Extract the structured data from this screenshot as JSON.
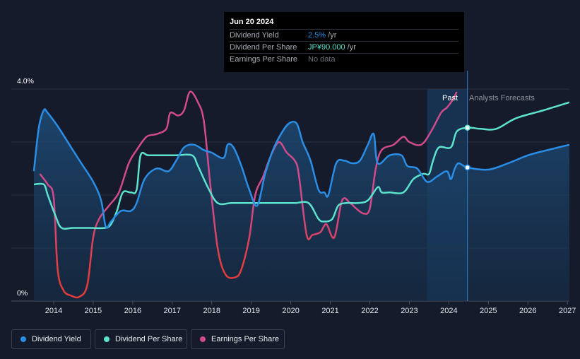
{
  "tooltip": {
    "date": "Jun 20 2024",
    "rows": [
      {
        "label": "Dividend Yield",
        "value": "2.5%",
        "unit": " /yr",
        "color": "#2a8ee6"
      },
      {
        "label": "Dividend Per Share",
        "value": "JP¥90.000",
        "unit": " /yr",
        "color": "#5de3cd"
      },
      {
        "label": "Earnings Per Share",
        "value": "No data",
        "unit": "",
        "color": "#6c717a"
      }
    ]
  },
  "legend": [
    {
      "label": "Dividend Yield",
      "color": "#2a8ee6"
    },
    {
      "label": "Dividend Per Share",
      "color": "#5de3cd"
    },
    {
      "label": "Earnings Per Share",
      "color": "#d14a89"
    }
  ],
  "chart_data": {
    "type": "line",
    "ylabel_top": "4.0%",
    "ylabel_bottom": "0%",
    "ylim": [
      0,
      4.0
    ],
    "xlim": [
      2013.5,
      2027.05
    ],
    "x_ticks": [
      "2014",
      "2015",
      "2016",
      "2017",
      "2018",
      "2019",
      "2020",
      "2021",
      "2022",
      "2023",
      "2024",
      "2025",
      "2026",
      "2027"
    ],
    "past_label": "Past",
    "forecast_label": "Analysts Forecasts",
    "forecast_start": 2024.47,
    "past_band_start": 2023.45,
    "series": [
      {
        "name": "Dividend Yield",
        "unit": "%",
        "color": "#2a8ee6",
        "area": true,
        "points": [
          [
            2013.5,
            2.45
          ],
          [
            2013.62,
            3.25
          ],
          [
            2013.75,
            3.6
          ],
          [
            2013.85,
            3.55
          ],
          [
            2014.1,
            3.3
          ],
          [
            2014.4,
            2.95
          ],
          [
            2014.7,
            2.6
          ],
          [
            2015.0,
            2.25
          ],
          [
            2015.2,
            1.9
          ],
          [
            2015.32,
            1.4
          ],
          [
            2015.45,
            1.5
          ],
          [
            2015.7,
            1.7
          ],
          [
            2015.95,
            1.7
          ],
          [
            2016.1,
            1.85
          ],
          [
            2016.3,
            2.3
          ],
          [
            2016.6,
            2.5
          ],
          [
            2016.9,
            2.45
          ],
          [
            2017.1,
            2.65
          ],
          [
            2017.3,
            2.9
          ],
          [
            2017.55,
            2.95
          ],
          [
            2017.8,
            2.85
          ],
          [
            2018.0,
            2.8
          ],
          [
            2018.3,
            2.7
          ],
          [
            2018.4,
            2.95
          ],
          [
            2018.55,
            2.9
          ],
          [
            2018.75,
            2.55
          ],
          [
            2018.95,
            2.1
          ],
          [
            2019.15,
            1.8
          ],
          [
            2019.35,
            2.4
          ],
          [
            2019.55,
            2.85
          ],
          [
            2019.75,
            3.15
          ],
          [
            2019.95,
            3.35
          ],
          [
            2020.15,
            3.35
          ],
          [
            2020.3,
            3.0
          ],
          [
            2020.5,
            2.65
          ],
          [
            2020.7,
            2.1
          ],
          [
            2020.85,
            2.05
          ],
          [
            2020.95,
            2.0
          ],
          [
            2021.15,
            2.6
          ],
          [
            2021.35,
            2.65
          ],
          [
            2021.55,
            2.6
          ],
          [
            2021.75,
            2.65
          ],
          [
            2021.95,
            2.95
          ],
          [
            2022.1,
            3.15
          ],
          [
            2022.2,
            2.6
          ],
          [
            2022.5,
            2.75
          ],
          [
            2022.8,
            2.75
          ],
          [
            2022.95,
            2.55
          ],
          [
            2023.2,
            2.5
          ],
          [
            2023.45,
            2.25
          ],
          [
            2023.7,
            2.35
          ],
          [
            2023.95,
            2.45
          ],
          [
            2024.05,
            2.3
          ],
          [
            2024.15,
            2.5
          ],
          [
            2024.25,
            2.6
          ],
          [
            2024.47,
            2.52
          ],
          [
            2025.0,
            2.48
          ],
          [
            2025.5,
            2.6
          ],
          [
            2026.0,
            2.75
          ],
          [
            2026.5,
            2.85
          ],
          [
            2027.05,
            2.95
          ]
        ]
      },
      {
        "name": "Dividend Per Share",
        "unit": "index",
        "color": "#5de3cd",
        "points": [
          [
            2013.5,
            2.2
          ],
          [
            2013.75,
            2.2
          ],
          [
            2013.85,
            2.0
          ],
          [
            2014.05,
            1.6
          ],
          [
            2014.2,
            1.38
          ],
          [
            2014.5,
            1.38
          ],
          [
            2014.9,
            1.38
          ],
          [
            2015.3,
            1.38
          ],
          [
            2015.45,
            1.45
          ],
          [
            2015.6,
            1.7
          ],
          [
            2015.75,
            2.05
          ],
          [
            2015.95,
            2.05
          ],
          [
            2016.1,
            2.1
          ],
          [
            2016.2,
            2.75
          ],
          [
            2016.4,
            2.75
          ],
          [
            2016.8,
            2.75
          ],
          [
            2017.1,
            2.75
          ],
          [
            2017.5,
            2.75
          ],
          [
            2017.65,
            2.55
          ],
          [
            2017.9,
            2.15
          ],
          [
            2018.15,
            1.85
          ],
          [
            2018.5,
            1.85
          ],
          [
            2018.9,
            1.85
          ],
          [
            2019.3,
            1.85
          ],
          [
            2019.7,
            1.85
          ],
          [
            2020.1,
            1.85
          ],
          [
            2020.45,
            1.85
          ],
          [
            2020.7,
            1.55
          ],
          [
            2020.85,
            1.5
          ],
          [
            2021.05,
            1.55
          ],
          [
            2021.2,
            1.8
          ],
          [
            2021.4,
            1.85
          ],
          [
            2021.7,
            1.85
          ],
          [
            2021.95,
            1.9
          ],
          [
            2022.2,
            2.15
          ],
          [
            2022.3,
            2.05
          ],
          [
            2022.5,
            2.05
          ],
          [
            2022.85,
            2.05
          ],
          [
            2023.1,
            2.3
          ],
          [
            2023.35,
            2.4
          ],
          [
            2023.5,
            2.4
          ],
          [
            2023.6,
            2.65
          ],
          [
            2023.75,
            2.9
          ],
          [
            2024.05,
            2.9
          ],
          [
            2024.2,
            3.2
          ],
          [
            2024.47,
            3.27
          ],
          [
            2024.8,
            3.25
          ],
          [
            2025.2,
            3.25
          ],
          [
            2025.7,
            3.45
          ],
          [
            2026.4,
            3.6
          ],
          [
            2027.05,
            3.75
          ]
        ]
      },
      {
        "name": "Earnings Per Share",
        "unit": "index",
        "color_top": "#d14a89",
        "color_bottom": "#e23c3c",
        "points": [
          [
            2013.65,
            2.4
          ],
          [
            2013.85,
            2.2
          ],
          [
            2014.0,
            1.95
          ],
          [
            2014.1,
            0.6
          ],
          [
            2014.25,
            0.2
          ],
          [
            2014.45,
            0.1
          ],
          [
            2014.65,
            0.08
          ],
          [
            2014.85,
            0.3
          ],
          [
            2015.0,
            1.2
          ],
          [
            2015.15,
            1.55
          ],
          [
            2015.4,
            1.8
          ],
          [
            2015.65,
            2.05
          ],
          [
            2015.9,
            2.6
          ],
          [
            2016.1,
            2.85
          ],
          [
            2016.35,
            3.1
          ],
          [
            2016.6,
            3.15
          ],
          [
            2016.85,
            3.25
          ],
          [
            2016.95,
            3.55
          ],
          [
            2017.15,
            3.5
          ],
          [
            2017.3,
            3.6
          ],
          [
            2017.45,
            3.95
          ],
          [
            2017.65,
            3.75
          ],
          [
            2017.8,
            3.4
          ],
          [
            2017.95,
            2.3
          ],
          [
            2018.15,
            1.0
          ],
          [
            2018.35,
            0.5
          ],
          [
            2018.6,
            0.45
          ],
          [
            2018.75,
            0.6
          ],
          [
            2018.95,
            1.2
          ],
          [
            2019.1,
            2.0
          ],
          [
            2019.3,
            2.35
          ],
          [
            2019.5,
            2.75
          ],
          [
            2019.7,
            3.0
          ],
          [
            2019.9,
            2.8
          ],
          [
            2020.1,
            2.65
          ],
          [
            2020.2,
            2.4
          ],
          [
            2020.4,
            1.25
          ],
          [
            2020.55,
            1.25
          ],
          [
            2020.75,
            1.3
          ],
          [
            2020.9,
            1.45
          ],
          [
            2021.1,
            1.2
          ],
          [
            2021.3,
            1.9
          ],
          [
            2021.5,
            1.85
          ],
          [
            2021.65,
            1.75
          ],
          [
            2021.85,
            1.65
          ],
          [
            2022.0,
            1.75
          ],
          [
            2022.15,
            2.5
          ],
          [
            2022.3,
            2.85
          ],
          [
            2022.6,
            2.95
          ],
          [
            2022.85,
            3.1
          ],
          [
            2023.0,
            3.0
          ],
          [
            2023.3,
            2.95
          ],
          [
            2023.55,
            3.2
          ],
          [
            2023.8,
            3.55
          ],
          [
            2023.95,
            3.65
          ],
          [
            2024.1,
            3.8
          ],
          [
            2024.2,
            3.95
          ]
        ]
      }
    ],
    "highlight_points": [
      {
        "series": "Dividend Per Share",
        "x": 2024.47,
        "y": 3.27
      },
      {
        "series": "Dividend Yield",
        "x": 2024.47,
        "y": 2.52
      }
    ]
  }
}
